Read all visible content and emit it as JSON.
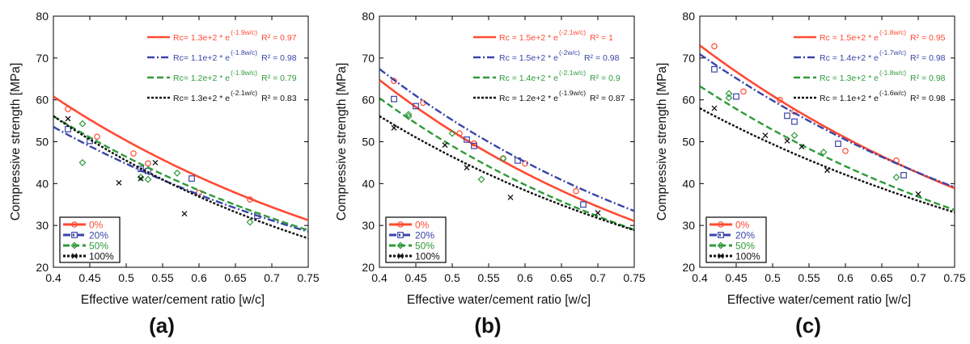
{
  "chart_data": [
    {
      "type": "scatter",
      "label": "(a)",
      "xlabel": "Effective water/cement ratio [w/c]",
      "ylabel": "Compressive strength [MPa]",
      "xlim": [
        0.4,
        0.75
      ],
      "ylim": [
        20,
        80
      ],
      "xticks": [
        "0.4",
        "0.45",
        "0.5",
        "0.55",
        "0.6",
        "0.65",
        "0.7",
        "0.75"
      ],
      "yticks": [
        "20",
        "30",
        "40",
        "50",
        "60",
        "70",
        "80"
      ],
      "legend_position": "bottom-left",
      "series": [
        {
          "name": "0%",
          "color": "#ff4a33",
          "marker": "circle",
          "dash": "solid",
          "fit": {
            "A": 130,
            "k": 1.9
          },
          "equation": "Rc= 1.3e+2 * e",
          "exponent": "(-1.9w/c)",
          "r2": "R² = 0.97",
          "points": [
            [
              0.42,
              57.8
            ],
            [
              0.46,
              51.2
            ],
            [
              0.51,
              47.2
            ],
            [
              0.53,
              44.8
            ],
            [
              0.6,
              37.8
            ],
            [
              0.67,
              36.2
            ]
          ]
        },
        {
          "name": "20%",
          "color": "#3a45a8",
          "marker": "square",
          "dash": "dashdot",
          "fit": {
            "A": 110,
            "k": 1.8
          },
          "equation": "Rc= 1.1e+2 * e",
          "exponent": "(-1.8w/c)",
          "r2": "R² = 0.98",
          "points": [
            [
              0.42,
              53.0
            ],
            [
              0.45,
              50.2
            ],
            [
              0.52,
              43.5
            ],
            [
              0.53,
              43.0
            ],
            [
              0.59,
              41.2
            ],
            [
              0.68,
              32.3
            ]
          ]
        },
        {
          "name": "50%",
          "color": "#2e9a3a",
          "marker": "diamond",
          "dash": "dashed",
          "fit": {
            "A": 120,
            "k": 1.9
          },
          "equation": "Rc= 1.2e+2 * e",
          "exponent": "(-1.9w/c)",
          "r2": "R² = 0.79",
          "points": [
            [
              0.44,
              54.3
            ],
            [
              0.44,
              45.0
            ],
            [
              0.52,
              41.5
            ],
            [
              0.53,
              41.0
            ],
            [
              0.57,
              42.5
            ],
            [
              0.67,
              30.8
            ]
          ]
        },
        {
          "name": "100%",
          "color": "#111111",
          "marker": "x",
          "dash": "dotted",
          "fit": {
            "A": 130,
            "k": 2.1
          },
          "equation": "Rc= 1.3e+2 * e",
          "exponent": "(-2.1w/c)",
          "r2": "R² = 0.83",
          "points": [
            [
              0.42,
              55.5
            ],
            [
              0.49,
              40.2
            ],
            [
              0.52,
              41.2
            ],
            [
              0.54,
              45.0
            ],
            [
              0.58,
              32.8
            ]
          ]
        }
      ]
    },
    {
      "type": "scatter",
      "label": "(b)",
      "xlabel": "Effective water/cement ratio [w/c]",
      "ylabel": "Compressive strength [MPa]",
      "xlim": [
        0.4,
        0.75
      ],
      "ylim": [
        20,
        80
      ],
      "xticks": [
        "0.4",
        "0.45",
        "0.5",
        "0.55",
        "0.6",
        "0.65",
        "0.7",
        "0.75"
      ],
      "yticks": [
        "20",
        "30",
        "40",
        "50",
        "60",
        "70",
        "80"
      ],
      "legend_position": "bottom-left",
      "series": [
        {
          "name": "0%",
          "color": "#ff4a33",
          "marker": "circle",
          "dash": "solid",
          "fit": {
            "A": 150,
            "k": 2.1
          },
          "equation": "Rc = 1.5e+2 * e",
          "exponent": "(-2.1w/c)",
          "r2": "R² = 1",
          "points": [
            [
              0.42,
              64.5
            ],
            [
              0.46,
              59.3
            ],
            [
              0.51,
              52.0
            ],
            [
              0.53,
              49.6
            ],
            [
              0.57,
              46.0
            ],
            [
              0.6,
              44.8
            ],
            [
              0.67,
              38.2
            ]
          ]
        },
        {
          "name": "20%",
          "color": "#3a45a8",
          "marker": "square",
          "dash": "dashdot",
          "fit": {
            "A": 150,
            "k": 2.0
          },
          "equation": "Rc = 1.5e+2 * e",
          "exponent": "(-2w/c)",
          "r2": "R² = 0.98",
          "points": [
            [
              0.42,
              60.2
            ],
            [
              0.45,
              58.5
            ],
            [
              0.52,
              50.5
            ],
            [
              0.53,
              49.0
            ],
            [
              0.59,
              45.5
            ],
            [
              0.68,
              35.0
            ]
          ]
        },
        {
          "name": "50%",
          "color": "#2e9a3a",
          "marker": "diamond",
          "dash": "dashed",
          "fit": {
            "A": 140,
            "k": 2.1
          },
          "equation": "Rc = 1.4e+2 * e",
          "exponent": "(-2.1w/c)",
          "r2": "R² = 0.9",
          "points": [
            [
              0.44,
              56.5
            ],
            [
              0.44,
              56.0
            ],
            [
              0.5,
              52.0
            ],
            [
              0.54,
              41.0
            ],
            [
              0.57,
              46.0
            ]
          ]
        },
        {
          "name": "100%",
          "color": "#111111",
          "marker": "x",
          "dash": "dotted",
          "fit": {
            "A": 120,
            "k": 1.9
          },
          "equation": "Rc = 1.2e+2 * e",
          "exponent": "(-1.9w/c)",
          "r2": "R² = 0.87",
          "points": [
            [
              0.42,
              53.3
            ],
            [
              0.49,
              49.2
            ],
            [
              0.52,
              43.8
            ],
            [
              0.58,
              36.7
            ],
            [
              0.7,
              33.0
            ]
          ]
        }
      ]
    },
    {
      "type": "scatter",
      "label": "(c)",
      "xlabel": "Effective water/cement ratio [w/c]",
      "ylabel": "Compressive strength [MPa]",
      "xlim": [
        0.4,
        0.75
      ],
      "ylim": [
        20,
        80
      ],
      "xticks": [
        "0.4",
        "0.45",
        "0.5",
        "0.55",
        "0.6",
        "0.65",
        "0.7",
        "0.75"
      ],
      "yticks": [
        "20",
        "30",
        "40",
        "50",
        "60",
        "70",
        "80"
      ],
      "legend_position": "bottom-left",
      "series": [
        {
          "name": "0%",
          "color": "#ff4a33",
          "marker": "circle",
          "dash": "solid",
          "fit": {
            "A": 150,
            "k": 1.8
          },
          "equation": "Rc = 1.5e+2 * e",
          "exponent": "(-1.8w/c)",
          "r2": "R² = 0.95",
          "points": [
            [
              0.42,
              72.8
            ],
            [
              0.46,
              62.0
            ],
            [
              0.51,
              60.0
            ],
            [
              0.53,
              57.2
            ],
            [
              0.6,
              47.8
            ],
            [
              0.67,
              45.5
            ]
          ]
        },
        {
          "name": "20%",
          "color": "#3a45a8",
          "marker": "square",
          "dash": "dashdot",
          "fit": {
            "A": 140,
            "k": 1.7
          },
          "equation": "Rc = 1.4e+2 * e",
          "exponent": "(-1.7w/c)",
          "r2": "R² = 0.98",
          "points": [
            [
              0.42,
              67.3
            ],
            [
              0.45,
              60.8
            ],
            [
              0.52,
              56.2
            ],
            [
              0.53,
              54.8
            ],
            [
              0.59,
              49.5
            ],
            [
              0.68,
              42.0
            ]
          ]
        },
        {
          "name": "50%",
          "color": "#2e9a3a",
          "marker": "diamond",
          "dash": "dashed",
          "fit": {
            "A": 130,
            "k": 1.8
          },
          "equation": "Rc = 1.3e+2 * e",
          "exponent": "(-1.8w/c)",
          "r2": "R² = 0.98",
          "points": [
            [
              0.44,
              61.5
            ],
            [
              0.44,
              60.5
            ],
            [
              0.53,
              51.5
            ],
            [
              0.57,
              47.5
            ],
            [
              0.67,
              41.5
            ]
          ]
        },
        {
          "name": "100%",
          "color": "#111111",
          "marker": "x",
          "dash": "dotted",
          "fit": {
            "A": 110,
            "k": 1.6
          },
          "equation": "Rc = 1.1e+2 * e",
          "exponent": "(-1.6w/c)",
          "r2": "R² = 0.98",
          "points": [
            [
              0.42,
              58.0
            ],
            [
              0.49,
              51.5
            ],
            [
              0.52,
              50.2
            ],
            [
              0.54,
              48.8
            ],
            [
              0.575,
              43.2
            ],
            [
              0.7,
              37.5
            ]
          ]
        }
      ]
    }
  ]
}
